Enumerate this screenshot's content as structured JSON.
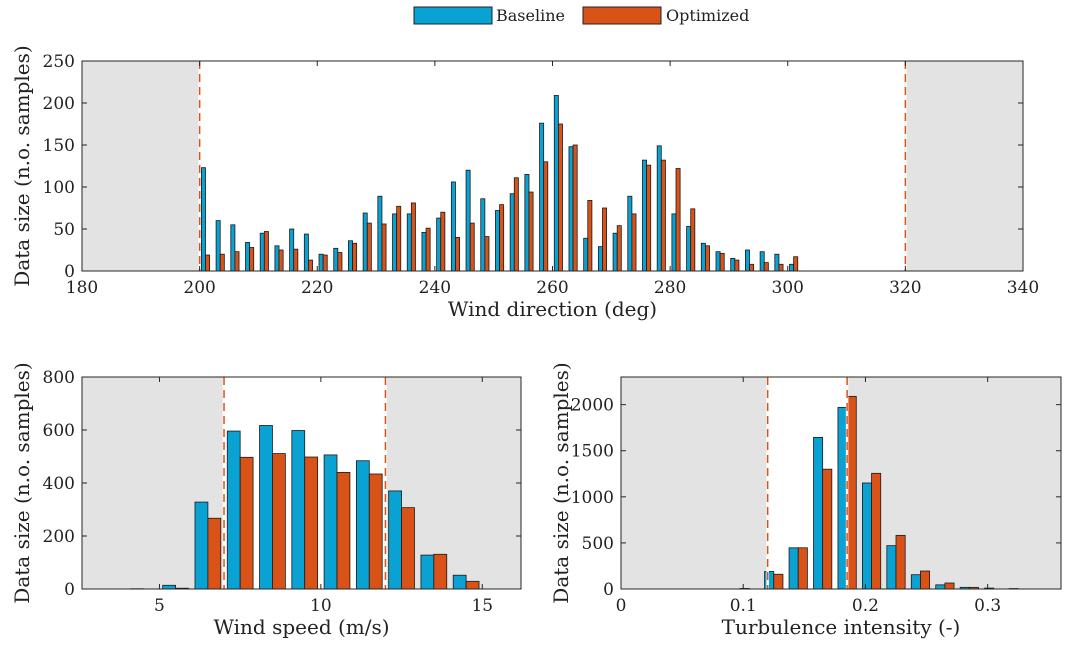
{
  "legend": {
    "entries": [
      {
        "label": "Baseline",
        "color": "#0aa1d3"
      },
      {
        "label": "Optimized",
        "color": "#d95319"
      }
    ]
  },
  "colors": {
    "baseline": "#0aa1d3",
    "optimized": "#d95319",
    "excluded_region": "#e3e3e3",
    "limit_line": "#d95319"
  },
  "chart_data": [
    {
      "id": "wind_direction",
      "type": "bar",
      "xlabel": "Wind direction (deg)",
      "ylabel": "Data size (n.o. samples)",
      "xlim": [
        180,
        340
      ],
      "ylim": [
        0,
        250
      ],
      "xticks": [
        180,
        200,
        220,
        240,
        260,
        280,
        300,
        320,
        340
      ],
      "yticks": [
        0,
        50,
        100,
        150,
        200,
        250
      ],
      "tick_labels_x": [
        "180",
        "200",
        "220",
        "240",
        "260",
        "280",
        "300",
        "320",
        "340"
      ],
      "tick_labels_y": [
        "0",
        "50",
        "100",
        "150",
        "200",
        "250"
      ],
      "included_range": [
        200,
        320
      ],
      "bar_width": 0.7,
      "x": [
        201,
        203.5,
        206,
        208.5,
        211,
        213.5,
        216,
        218.5,
        221,
        223.5,
        226,
        228.5,
        231,
        233.5,
        236,
        238.5,
        241,
        243.5,
        246,
        248.5,
        251,
        253.5,
        256,
        258.5,
        261,
        263.5,
        266,
        268.5,
        271,
        273.5,
        276,
        278.5,
        281,
        283.5,
        286,
        288.5,
        291,
        293.5,
        296,
        298.5,
        301,
        303.5,
        306,
        308.5,
        311,
        313.5,
        316,
        318.5
      ],
      "series": [
        {
          "name": "Baseline",
          "values": [
            123,
            60,
            55,
            34,
            45,
            30,
            50,
            44,
            20,
            27,
            36,
            69,
            89,
            68,
            68,
            46,
            63,
            106,
            120,
            86,
            72,
            92,
            115,
            176,
            209,
            148,
            39,
            29,
            45,
            89,
            132,
            149,
            68,
            53,
            33,
            23,
            15,
            25,
            23,
            20,
            8,
            0,
            0,
            0,
            0,
            0,
            0,
            0
          ]
        },
        {
          "name": "Optimized",
          "values": [
            19,
            20,
            23,
            28,
            47,
            25,
            26,
            13,
            19,
            22,
            33,
            57,
            56,
            77,
            81,
            51,
            70,
            40,
            57,
            41,
            79,
            111,
            94,
            130,
            175,
            150,
            84,
            75,
            54,
            68,
            126,
            132,
            122,
            74,
            30,
            21,
            13,
            8,
            10,
            8,
            17,
            0,
            0,
            0,
            0,
            0,
            0,
            0
          ]
        }
      ],
      "legend": "top-center, outside",
      "grid": false
    },
    {
      "id": "wind_speed",
      "type": "bar",
      "xlabel": "Wind speed (m/s)",
      "ylabel": "Data size (n.o. samples)",
      "xlim": [
        2.6,
        16.2
      ],
      "ylim": [
        0,
        800
      ],
      "xticks": [
        5,
        10,
        15
      ],
      "yticks": [
        0,
        200,
        400,
        600,
        800
      ],
      "tick_labels_x": [
        "5",
        "10",
        "15"
      ],
      "tick_labels_y": [
        "0",
        "200",
        "400",
        "600",
        "800"
      ],
      "included_range": [
        7,
        12
      ],
      "bar_width": 0.4,
      "x": [
        3.5,
        4.5,
        5.5,
        6.5,
        7.5,
        8.5,
        9.5,
        10.5,
        11.5,
        12.5,
        13.5,
        14.5
      ],
      "series": [
        {
          "name": "Baseline",
          "values": [
            0,
            1,
            14,
            328,
            596,
            617,
            598,
            506,
            484,
            370,
            128,
            52
          ]
        },
        {
          "name": "Optimized",
          "values": [
            0,
            0,
            3,
            267,
            497,
            511,
            498,
            440,
            434,
            307,
            131,
            29
          ]
        }
      ],
      "grid": false
    },
    {
      "id": "turbulence_intensity",
      "type": "bar",
      "xlabel": "Turbulence intensity (-)",
      "ylabel": "Data size (n.o. samples)",
      "xlim": [
        0,
        0.36
      ],
      "ylim": [
        0,
        2300
      ],
      "xticks": [
        0,
        0.1,
        0.2,
        0.3
      ],
      "yticks": [
        0,
        500,
        1000,
        1500,
        2000
      ],
      "tick_labels_x": [
        "0",
        "0.1",
        "0.2",
        "0.3"
      ],
      "tick_labels_y": [
        "0",
        "500",
        "1000",
        "1500",
        "2000"
      ],
      "included_range": [
        0.12,
        0.185
      ],
      "bar_width": 0.0075,
      "x": [
        0.065,
        0.085,
        0.105,
        0.125,
        0.145,
        0.165,
        0.185,
        0.205,
        0.225,
        0.245,
        0.265,
        0.285,
        0.305,
        0.325
      ],
      "series": [
        {
          "name": "Baseline",
          "values": [
            0,
            0,
            6,
            190,
            447,
            1645,
            1970,
            1150,
            470,
            155,
            45,
            18,
            10,
            5
          ]
        },
        {
          "name": "Optimized",
          "values": [
            0,
            0,
            0,
            160,
            447,
            1300,
            2090,
            1255,
            582,
            195,
            65,
            18,
            0,
            0
          ]
        }
      ],
      "grid": false
    }
  ]
}
